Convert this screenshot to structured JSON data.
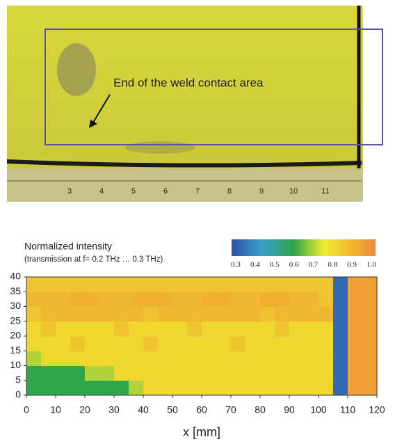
{
  "photo": {
    "annotation": "End of the weld contact area",
    "ruler_labels": [
      "3",
      "4",
      "5",
      "6",
      "7",
      "8",
      "9",
      "10",
      "11"
    ]
  },
  "chart_data": {
    "type": "heatmap",
    "title": "Normalized intensity",
    "subtitle": "(transmission at f= 0.2 THz … 0.3 THz)",
    "xlabel": "x [mm]",
    "xlim": [
      0,
      120
    ],
    "ylim": [
      0,
      40
    ],
    "xticks": [
      0,
      10,
      20,
      30,
      40,
      50,
      60,
      70,
      80,
      90,
      100,
      110,
      120
    ],
    "yticks": [
      0,
      5,
      10,
      15,
      20,
      25,
      30,
      35,
      40
    ],
    "cell_size": 5,
    "z": [
      [
        0.6,
        0.6,
        0.6,
        0.6,
        0.6,
        0.6,
        0.6,
        0.7,
        0.8,
        0.8,
        0.8,
        0.8,
        0.8,
        0.8,
        0.8,
        0.8,
        0.8,
        0.8,
        0.8,
        0.8,
        0.8,
        0.35,
        0.95,
        0.95
      ],
      [
        0.6,
        0.6,
        0.6,
        0.6,
        0.7,
        0.7,
        0.8,
        0.8,
        0.8,
        0.8,
        0.8,
        0.8,
        0.8,
        0.8,
        0.8,
        0.8,
        0.8,
        0.8,
        0.8,
        0.8,
        0.8,
        0.35,
        0.95,
        0.95
      ],
      [
        0.7,
        0.8,
        0.8,
        0.8,
        0.8,
        0.8,
        0.8,
        0.8,
        0.8,
        0.8,
        0.8,
        0.8,
        0.8,
        0.8,
        0.8,
        0.8,
        0.8,
        0.8,
        0.8,
        0.8,
        0.8,
        0.35,
        0.95,
        0.95
      ],
      [
        0.8,
        0.8,
        0.8,
        0.85,
        0.8,
        0.8,
        0.8,
        0.8,
        0.85,
        0.8,
        0.8,
        0.8,
        0.8,
        0.8,
        0.85,
        0.8,
        0.8,
        0.8,
        0.8,
        0.8,
        0.8,
        0.35,
        0.95,
        0.95
      ],
      [
        0.8,
        0.85,
        0.8,
        0.8,
        0.8,
        0.8,
        0.85,
        0.8,
        0.8,
        0.8,
        0.8,
        0.85,
        0.8,
        0.8,
        0.8,
        0.8,
        0.8,
        0.85,
        0.8,
        0.8,
        0.8,
        0.35,
        0.95,
        0.95
      ],
      [
        0.85,
        0.88,
        0.88,
        0.88,
        0.88,
        0.88,
        0.88,
        0.88,
        0.85,
        0.88,
        0.88,
        0.88,
        0.88,
        0.88,
        0.88,
        0.88,
        0.85,
        0.88,
        0.88,
        0.88,
        0.88,
        0.35,
        0.95,
        0.95
      ],
      [
        0.88,
        0.88,
        0.88,
        0.9,
        0.9,
        0.88,
        0.88,
        0.9,
        0.9,
        0.9,
        0.88,
        0.88,
        0.9,
        0.9,
        0.88,
        0.88,
        0.9,
        0.9,
        0.88,
        0.88,
        0.85,
        0.35,
        0.95,
        0.95
      ],
      [
        0.85,
        0.85,
        0.85,
        0.85,
        0.85,
        0.85,
        0.85,
        0.85,
        0.85,
        0.85,
        0.85,
        0.85,
        0.85,
        0.85,
        0.85,
        0.85,
        0.85,
        0.85,
        0.85,
        0.85,
        0.85,
        0.35,
        0.95,
        0.95
      ]
    ],
    "colorscale": {
      "stops": [
        0.3,
        0.45,
        0.6,
        0.75,
        0.9,
        1
      ],
      "colors": [
        "#2f4fa8",
        "#3aa0c8",
        "#2ea64a",
        "#f0ea30",
        "#f0b030",
        "#f08c40"
      ]
    },
    "clim": [
      0.3,
      1
    ],
    "cticks": [
      0.3,
      0.4,
      0.5,
      0.6,
      0.7,
      0.8,
      0.9,
      {
        "value": 1,
        "label": "1.0"
      }
    ]
  }
}
